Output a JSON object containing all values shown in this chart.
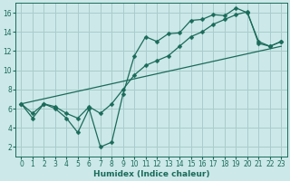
{
  "xlabel": "Humidex (Indice chaleur)",
  "background_color": "#cce8e8",
  "grid_color": "#a8cccc",
  "line_color": "#1a6b5a",
  "xlim": [
    -0.5,
    23.5
  ],
  "ylim": [
    1.0,
    17.0
  ],
  "yticks": [
    2,
    4,
    6,
    8,
    10,
    12,
    14,
    16
  ],
  "xticks": [
    0,
    1,
    2,
    3,
    4,
    5,
    6,
    7,
    8,
    9,
    10,
    11,
    12,
    13,
    14,
    15,
    16,
    17,
    18,
    19,
    20,
    21,
    22,
    23
  ],
  "line1_x": [
    0,
    1,
    2,
    3,
    4,
    5,
    6,
    7,
    8,
    9,
    10,
    11,
    12,
    13,
    14,
    15,
    16,
    17,
    18,
    19,
    20,
    21,
    22,
    23
  ],
  "line1_y": [
    6.5,
    5.0,
    6.5,
    6.0,
    5.0,
    3.5,
    6.0,
    2.0,
    2.5,
    7.5,
    11.5,
    13.5,
    13.0,
    13.8,
    13.9,
    15.2,
    15.3,
    15.8,
    15.7,
    16.5,
    16.0,
    13.0,
    12.5,
    13.0
  ],
  "line2_x": [
    0,
    1,
    2,
    3,
    4,
    5,
    6,
    7,
    8,
    9,
    10,
    11,
    12,
    13,
    14,
    15,
    16,
    17,
    18,
    19,
    20,
    21,
    22,
    23
  ],
  "line2_y": [
    6.5,
    5.5,
    6.5,
    6.2,
    5.5,
    5.0,
    6.2,
    5.5,
    6.5,
    8.0,
    9.5,
    10.5,
    11.0,
    11.5,
    12.5,
    13.5,
    14.0,
    14.8,
    15.3,
    15.8,
    16.1,
    12.8,
    12.5,
    13.0
  ],
  "straight_x0": 0.0,
  "straight_y0": 6.5,
  "straight_x1": 23.0,
  "straight_y1": 12.5
}
